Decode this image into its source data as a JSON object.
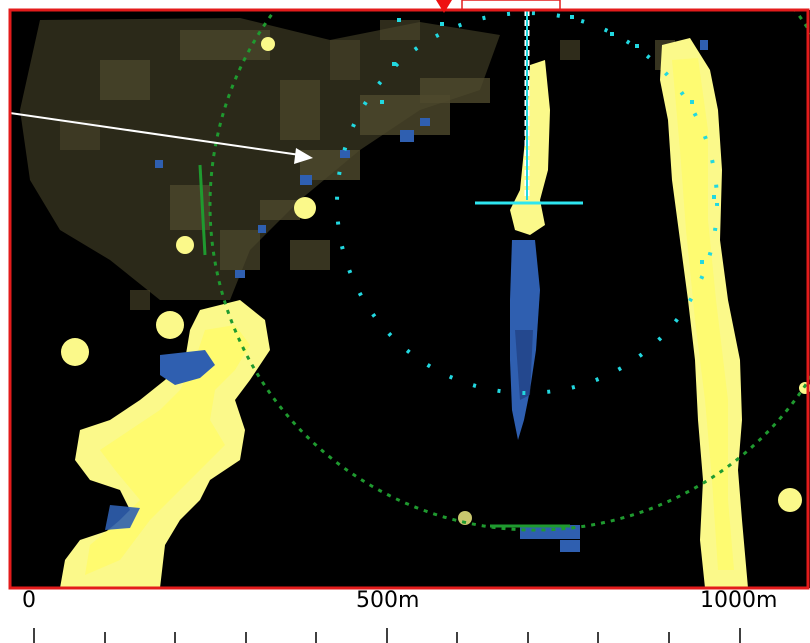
{
  "scale_bar": {
    "label_start": "0",
    "label_mid": "500m",
    "label_end": "1000m",
    "ticks": 11
  },
  "colors": {
    "frame_border": "#e31b1b",
    "background": "#000000",
    "echo_strong": "#fbf98a",
    "echo_core": "#ffff55",
    "echo_olive": "#4f4a2d",
    "echo_blue": "#2f5fb0",
    "range_ring": "#1f9a2f",
    "inner_ring": "#22d8e0",
    "crosshair": "#2ee6f0",
    "pointer_arrow": "#ffffff",
    "marker": "#ee1111"
  }
}
